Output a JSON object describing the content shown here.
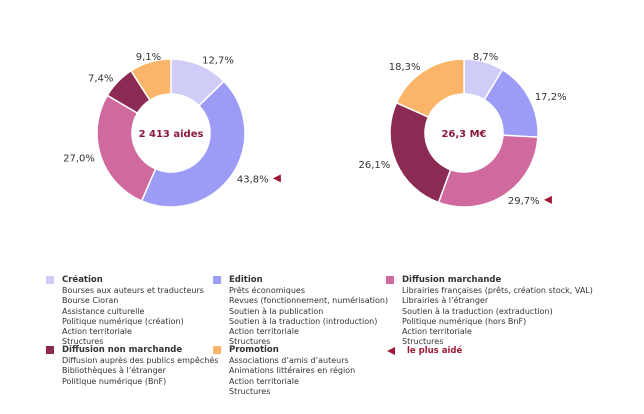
{
  "chart_data": [
    {
      "type": "pie",
      "center_label": "2 413 aides",
      "slices": [
        {
          "name": "Création",
          "value": 12.7,
          "label": "12,7%",
          "color": "#cfcdf7"
        },
        {
          "name": "Edition",
          "value": 43.8,
          "label": "43,8%",
          "color": "#9c9cf7",
          "highlight": true
        },
        {
          "name": "Diffusion marchande",
          "value": 27.0,
          "label": "27,0%",
          "color": "#d0699e"
        },
        {
          "name": "Diffusion non marchande",
          "value": 7.4,
          "label": "7,4%",
          "color": "#8b2a52"
        },
        {
          "name": "Promotion",
          "value": 9.1,
          "label": "9,1%",
          "color": "#fbb569"
        }
      ]
    },
    {
      "type": "pie",
      "center_label": "26,3 M€",
      "slices": [
        {
          "name": "Création",
          "value": 8.7,
          "label": "8,7%",
          "color": "#cfcdf7"
        },
        {
          "name": "Edition",
          "value": 17.2,
          "label": "17,2%",
          "color": "#9c9cf7"
        },
        {
          "name": "Diffusion marchande",
          "value": 29.7,
          "label": "29,7%",
          "color": "#d0699e",
          "highlight": true
        },
        {
          "name": "Diffusion non marchande",
          "value": 26.1,
          "label": "26,1%",
          "color": "#8b2a52"
        },
        {
          "name": "Promotion",
          "value": 18.3,
          "label": "18,3%",
          "color": "#fbb569"
        }
      ]
    }
  ],
  "legend": {
    "groups": [
      {
        "title": "Création",
        "color": "#cfcdf7",
        "items": [
          "Bourses aux auteurs et traducteurs",
          "Bourse Cioran",
          "Assistance culturelle",
          "Politique numérique (création)",
          "Action territoriale",
          "Structures"
        ]
      },
      {
        "title": "Edition",
        "color": "#9c9cf7",
        "items": [
          "Prêts économiques",
          "Revues (fonctionnement, numérisation)",
          "Soutien à la publication",
          "Soutien à la traduction (introduction)",
          "Action territoriale",
          "Structures"
        ]
      },
      {
        "title": "Diffusion marchande",
        "color": "#d0699e",
        "items": [
          "Librairies françaises (prêts, création stock, VAL)",
          "Librairies à l’étranger",
          "Soutien à la traduction (extraduction)",
          "Politique numérique (hors BnF)",
          "Action territoriale",
          "Structures"
        ]
      },
      {
        "title": "Diffusion non marchande",
        "color": "#8b2a52",
        "items": [
          "Diffusion auprès des publics empêchés",
          "Bibliothèques à l’étranger",
          "Politique numérique (BnF)"
        ]
      },
      {
        "title": "Promotion",
        "color": "#fbb569",
        "items": [
          "Associations d’amis d’auteurs",
          "Animations littéraires en région",
          "Action territoriale",
          "Structures"
        ]
      }
    ],
    "marker_label": "le plus aidé",
    "marker_color": "#a01838"
  }
}
